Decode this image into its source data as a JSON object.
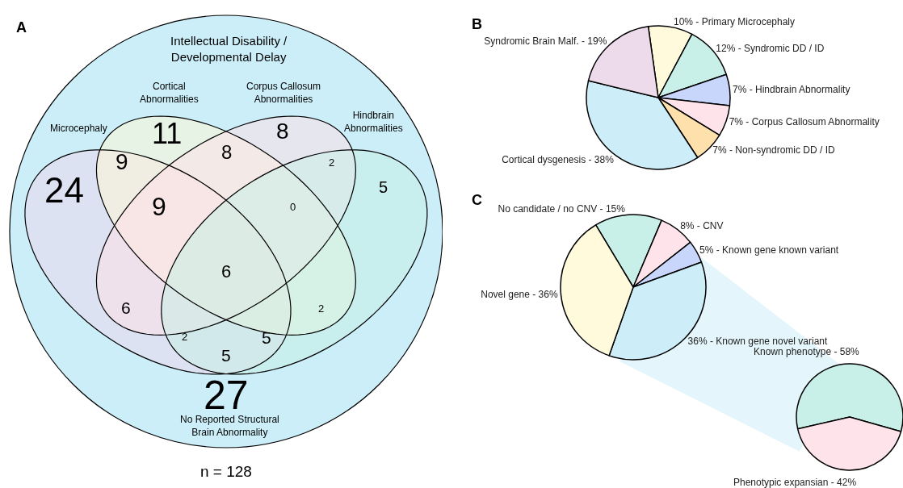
{
  "chart_data": [
    {
      "type": "other",
      "title": "A",
      "colors": [
        "#cbeef8",
        "#ecd9ec",
        "#fff8d6",
        "#fde0e8",
        "#c8efe6"
      ],
      "annotations": [
        "Intellectual Disability /\nDevelopmental Delay",
        "Cortical\nAbnormalities",
        "Corpus Callosum\nAbnormalities",
        "Microcephaly",
        "Hindbrain\nAbnormalities",
        "No Reported Structural\nBrain Abnormality",
        "n = 128",
        "24",
        "11",
        "8",
        "9",
        "8",
        "2",
        "5",
        "9",
        "0",
        "6",
        "6",
        "2",
        "2",
        "5",
        "5",
        "27"
      ]
    },
    {
      "type": "pie",
      "title": "B",
      "categories": [
        "10% - Primary Microcephaly",
        "12% - Syndromic DD / ID",
        "7% - Hindbrain Abnormality",
        "7% - Corpus Callosum Abnormality",
        "7% - Non-syndromic DD / ID",
        "Cortical dysgenesis - 38%",
        "Syndromic Brain Malf. - 19%"
      ],
      "values": [
        10,
        12,
        7,
        7,
        7,
        38,
        19
      ],
      "colors": [
        "#fffadc",
        "#c8efe8",
        "#c9d6fc",
        "#fee4ea",
        "#fee0ad",
        "#cdeef8",
        "#eddbeb"
      ]
    },
    {
      "type": "pie",
      "title": "C",
      "categories": [
        "No candidate / no CNV - 15%",
        "8% - CNV",
        "5% - Known gene known variant",
        "36% - Known gene novel variant",
        "Novel gene - 36%"
      ],
      "values": [
        15,
        8,
        5,
        36,
        36
      ],
      "colors": [
        "#c8efe8",
        "#fee4ea",
        "#c9d6fc",
        "#cdeef8",
        "#fffadc"
      ]
    },
    {
      "type": "pie",
      "categories": [
        "Known phenotype - 58%",
        "Phenotypic expansian - 42%"
      ],
      "values": [
        58,
        42
      ],
      "colors": [
        "#c8efe8",
        "#fee4ea"
      ]
    }
  ]
}
